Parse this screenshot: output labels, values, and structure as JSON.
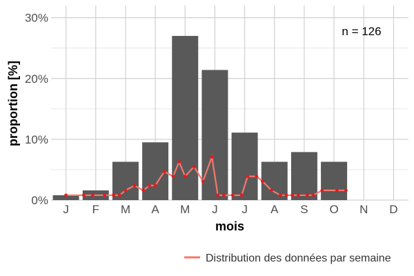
{
  "chart_data": {
    "type": "bar",
    "categories": [
      "J",
      "F",
      "M",
      "A",
      "M",
      "J",
      "J",
      "A",
      "S",
      "O",
      "N",
      "D"
    ],
    "values": [
      0.8,
      1.6,
      6.3,
      9.5,
      27.0,
      21.4,
      11.1,
      6.3,
      7.9,
      6.3,
      0,
      0
    ],
    "ylim": [
      0,
      32
    ],
    "yticks": [
      0,
      10,
      20,
      30
    ],
    "ytick_labels": [
      "0%",
      "10%",
      "20%",
      "30%"
    ],
    "xlabel": "mois",
    "ylabel": "proportion [%]",
    "annotation": "n = 126",
    "grid": true,
    "legend_position": "bottom-right",
    "bar_color": "#595959",
    "weekly_series": {
      "name": "Distribution des données par semaine",
      "color": "#f8766d",
      "point_color": "#e41a1c",
      "x": [
        0.0,
        0.6,
        0.9,
        1.3,
        1.6,
        1.8,
        2.0,
        2.3,
        2.6,
        2.8,
        3.0,
        3.3,
        3.6,
        3.8,
        4.0,
        4.3,
        4.6,
        4.9,
        5.1,
        5.3,
        5.6,
        5.9,
        6.1,
        6.4,
        6.6,
        6.9,
        7.2,
        7.4,
        7.6,
        7.8,
        8.1,
        8.3,
        8.6,
        9.1,
        9.4
      ],
      "y": [
        0.8,
        0.8,
        0.8,
        0.8,
        0.8,
        0.8,
        1.6,
        2.4,
        1.6,
        2.4,
        2.4,
        4.7,
        3.9,
        6.3,
        3.9,
        5.5,
        3.1,
        7.1,
        0.8,
        0.8,
        0.8,
        0.8,
        3.9,
        3.9,
        3.1,
        1.6,
        0.8,
        0.8,
        0.8,
        0.8,
        0.8,
        0.8,
        1.6,
        1.6,
        1.6
      ]
    }
  }
}
